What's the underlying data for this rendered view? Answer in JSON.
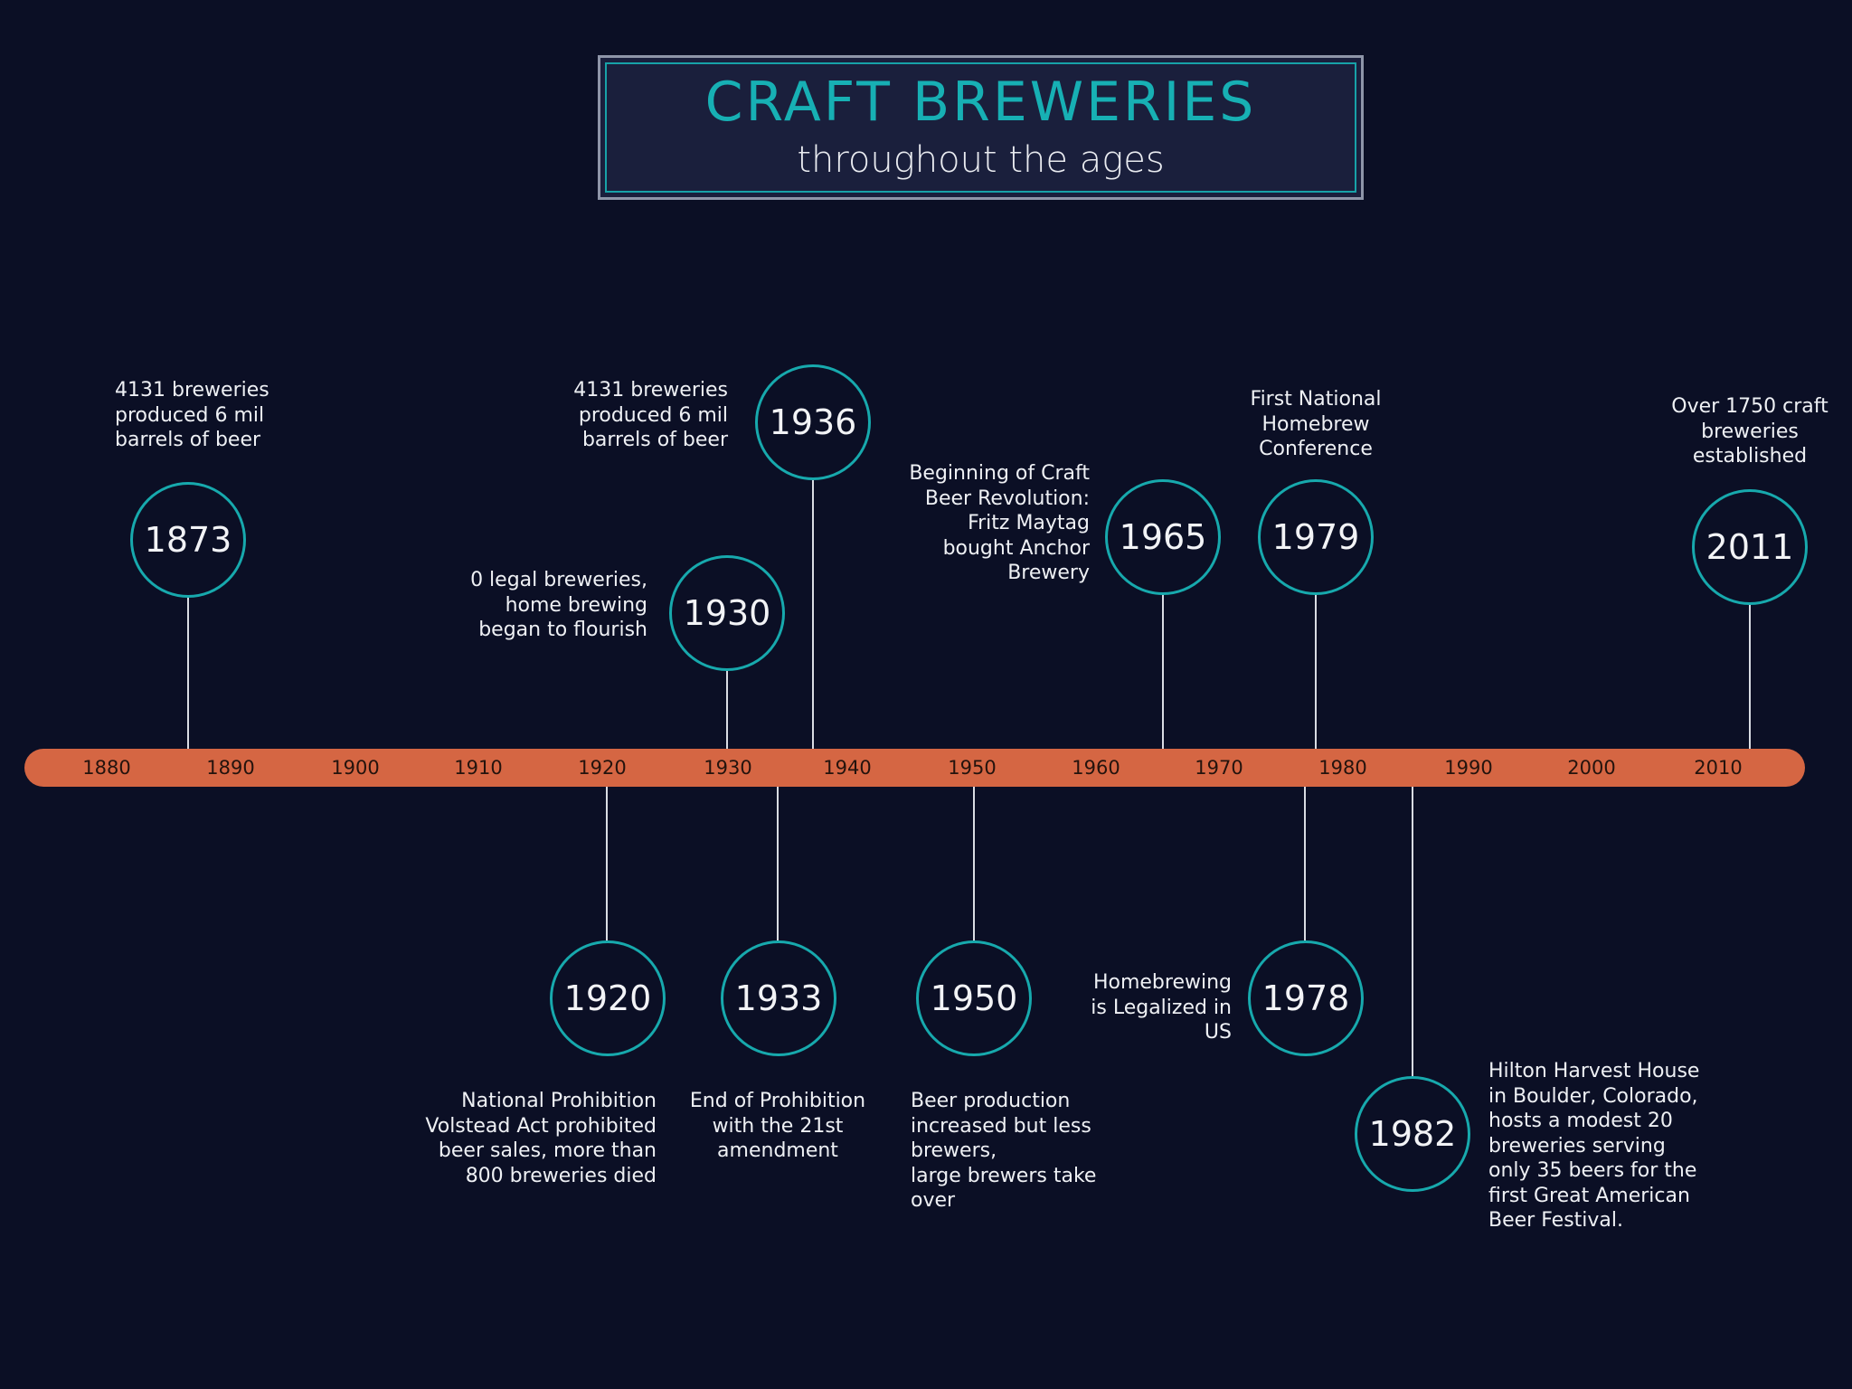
{
  "title": "CRAFT BREWERIES",
  "subtitle": "throughout the ages",
  "axis": {
    "ticks": [
      "1880",
      "1890",
      "1900",
      "1910",
      "1920",
      "1930",
      "1940",
      "1950",
      "1960",
      "1970",
      "1980",
      "1990",
      "2000",
      "2010"
    ]
  },
  "events": [
    {
      "year": "1873",
      "label": "4131 breweries\nproduced 6 mil\nbarrels of beer"
    },
    {
      "year": "1920",
      "label": "National Prohibition\nVolstead Act prohibited\nbeer sales, more than\n800 breweries died"
    },
    {
      "year": "1930",
      "label": "0 legal breweries,\nhome brewing\nbegan to flourish"
    },
    {
      "year": "1933",
      "label": "End of Prohibition\nwith the 21st\namendment"
    },
    {
      "year": "1936",
      "label": "4131 breweries\nproduced 6 mil\nbarrels of beer"
    },
    {
      "year": "1950",
      "label": "Beer production\nincreased but less\nbrewers,\nlarge brewers take\nover"
    },
    {
      "year": "1965",
      "label": "Beginning of Craft\nBeer Revolution:\nFritz Maytag\nbought Anchor\nBrewery"
    },
    {
      "year": "1978",
      "label": "Homebrewing\nis Legalized in\nUS"
    },
    {
      "year": "1979",
      "label": "First National\nHomebrew\nConference"
    },
    {
      "year": "1982",
      "label": "Hilton Harvest House\nin Boulder, Colorado,\nhosts a modest 20\nbreweries serving\nonly 35 beers for the\nfirst Great American\nBeer Festival."
    },
    {
      "year": "2011",
      "label": "Over 1750 craft\nbreweries\nestablished"
    }
  ]
}
